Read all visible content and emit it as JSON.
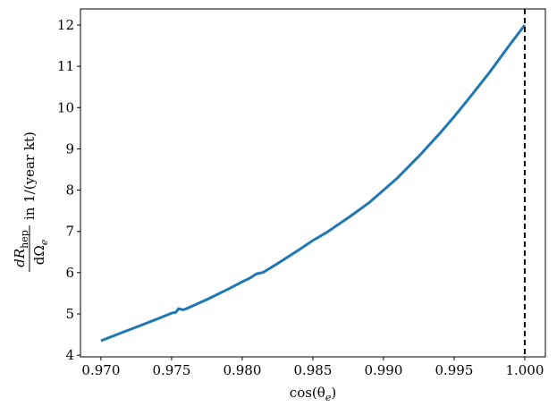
{
  "chart_data": {
    "type": "line",
    "xlabel": {
      "before": "cos(θ",
      "sub": "e",
      "after": ")"
    },
    "ylabel": {
      "numerator": "dR",
      "numerator_sub": "hep",
      "denominator": "dΩ",
      "denominator_sub": "e",
      "text": "in 1/(year kt)"
    },
    "x": [
      0.97,
      0.9715,
      0.9725,
      0.974,
      0.975,
      0.9753,
      0.9755,
      0.9758,
      0.976,
      0.9775,
      0.979,
      0.98,
      0.9805,
      0.981,
      0.9815,
      0.9825,
      0.984,
      0.985,
      0.986,
      0.9875,
      0.989,
      0.99,
      0.991,
      0.9925,
      0.994,
      0.995,
      0.996,
      0.9975,
      0.999,
      1.0
    ],
    "series": [
      {
        "color": "#1f77b4",
        "values": [
          4.35,
          4.55,
          4.68,
          4.88,
          5.02,
          5.04,
          5.13,
          5.1,
          5.12,
          5.35,
          5.6,
          5.78,
          5.86,
          5.97,
          6.01,
          6.22,
          6.55,
          6.78,
          6.98,
          7.33,
          7.7,
          8.0,
          8.3,
          8.82,
          9.38,
          9.78,
          10.2,
          10.85,
          11.55,
          12.0
        ]
      }
    ],
    "vline": {
      "x": 1.0,
      "color": "#000000"
    },
    "xlim": [
      0.96855,
      1.00146
    ],
    "ylim": [
      3.96,
      12.39
    ],
    "xticks": [
      {
        "value": 0.97,
        "label": "0.970"
      },
      0.975,
      {
        "value": 0.98,
        "label": "0.980"
      },
      0.985,
      {
        "value": 0.99,
        "label": "0.990"
      },
      0.995,
      {
        "value": 1,
        "label": "1.000"
      }
    ],
    "yticks": [
      4,
      5,
      6,
      7,
      8,
      9,
      10,
      11,
      12
    ]
  }
}
